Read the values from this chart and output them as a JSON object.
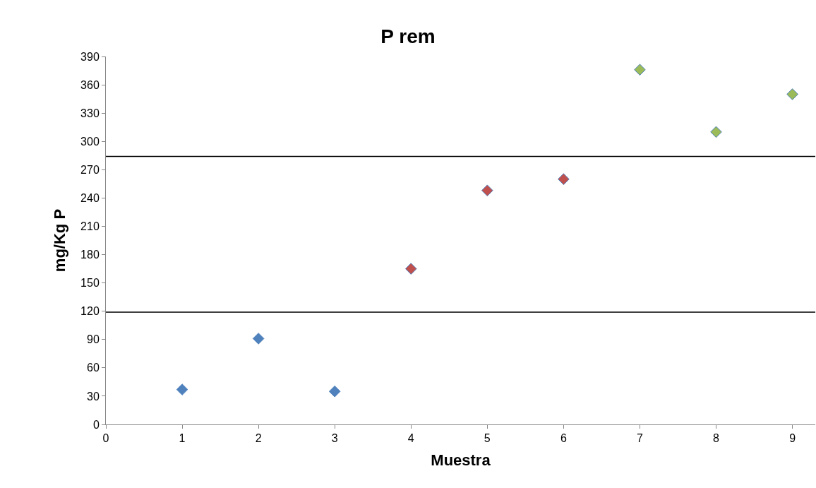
{
  "chart_data": {
    "type": "scatter",
    "title": "P rem",
    "xlabel": "Muestra",
    "ylabel": "mg/Kg P",
    "series": [
      {
        "color": "#4f81bd",
        "x": [
          1,
          2,
          3
        ],
        "values": [
          37,
          91,
          35
        ]
      },
      {
        "color": "#c0504d",
        "x": [
          4,
          5,
          6
        ],
        "values": [
          165,
          248,
          260
        ]
      },
      {
        "color": "#9bbb59",
        "x": [
          7,
          8,
          9
        ],
        "values": [
          376,
          310,
          350
        ]
      }
    ],
    "xlim": [
      0,
      9.3
    ],
    "xticks": [
      0,
      1,
      2,
      3,
      4,
      5,
      6,
      7,
      8,
      9
    ],
    "ylim": [
      0,
      390
    ],
    "yticks": [
      0,
      30,
      60,
      90,
      120,
      150,
      180,
      210,
      240,
      270,
      300,
      330,
      360,
      390
    ],
    "ref_lines": [
      {
        "axis": "y",
        "value": 119,
        "color": "#000000"
      },
      {
        "axis": "y",
        "value": 284,
        "color": "#000000"
      }
    ],
    "marker": "diamond"
  }
}
